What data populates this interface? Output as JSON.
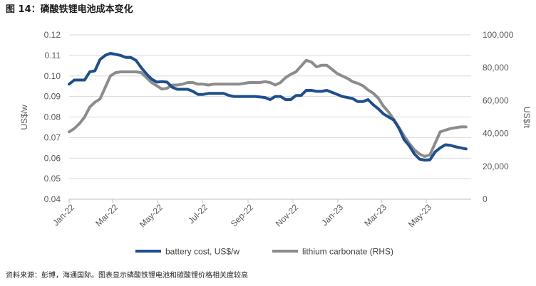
{
  "figure": {
    "title": "图 14：磷酸铁锂电池成本变化",
    "source": "资料来源：彭博，海通国际。图表显示磷酸铁锂电池和碳酸锂价格相关度较高"
  },
  "chart_data": {
    "type": "line",
    "title": "",
    "xlabel": "",
    "ylabel": "US$/w",
    "y2label": "US$/t",
    "x_tick_labels": [
      "Jan-22",
      "Mar-22",
      "May-22",
      "Jul-22",
      "Sep-22",
      "Nov-22",
      "Jan-23",
      "Mar-23",
      "May-23"
    ],
    "x_range_months": [
      "2022-01",
      "2023-06"
    ],
    "ylim": [
      0.04,
      0.12
    ],
    "y_ticks": [
      "0.04",
      "0.05",
      "0.06",
      "0.07",
      "0.08",
      "0.09",
      "0.10",
      "0.11",
      "0.12"
    ],
    "y2lim": [
      0,
      100000
    ],
    "y2_ticks": [
      "0",
      "20,000",
      "40,000",
      "60,000",
      "80,000",
      "100,000"
    ],
    "grid": true,
    "legend_position": "bottom",
    "series": [
      {
        "name": "battery cost, US$/w",
        "axis": "left",
        "color": "#1f4e8c",
        "points": [
          [
            "2022-01-01",
            0.096
          ],
          [
            "2022-01-08",
            0.098
          ],
          [
            "2022-01-15",
            0.098
          ],
          [
            "2022-01-22",
            0.098
          ],
          [
            "2022-01-29",
            0.102
          ],
          [
            "2022-02-05",
            0.1025
          ],
          [
            "2022-02-12",
            0.108
          ],
          [
            "2022-02-19",
            0.11
          ],
          [
            "2022-02-26",
            0.111
          ],
          [
            "2022-03-05",
            0.1105
          ],
          [
            "2022-03-12",
            0.11
          ],
          [
            "2022-03-19",
            0.109
          ],
          [
            "2022-03-26",
            0.109
          ],
          [
            "2022-04-02",
            0.1075
          ],
          [
            "2022-04-09",
            0.104
          ],
          [
            "2022-04-16",
            0.101
          ],
          [
            "2022-04-23",
            0.0985
          ],
          [
            "2022-04-30",
            0.097
          ],
          [
            "2022-05-07",
            0.0972
          ],
          [
            "2022-05-14",
            0.097
          ],
          [
            "2022-05-21",
            0.0945
          ],
          [
            "2022-05-28",
            0.0935
          ],
          [
            "2022-06-04",
            0.0935
          ],
          [
            "2022-06-11",
            0.0935
          ],
          [
            "2022-06-18",
            0.0925
          ],
          [
            "2022-06-25",
            0.091
          ],
          [
            "2022-07-02",
            0.091
          ],
          [
            "2022-07-09",
            0.0915
          ],
          [
            "2022-07-16",
            0.0915
          ],
          [
            "2022-07-23",
            0.0915
          ],
          [
            "2022-07-30",
            0.0915
          ],
          [
            "2022-08-06",
            0.0905
          ],
          [
            "2022-08-13",
            0.09
          ],
          [
            "2022-08-20",
            0.09
          ],
          [
            "2022-08-27",
            0.09
          ],
          [
            "2022-09-03",
            0.09
          ],
          [
            "2022-09-10",
            0.09
          ],
          [
            "2022-09-17",
            0.0898
          ],
          [
            "2022-09-24",
            0.0895
          ],
          [
            "2022-10-01",
            0.0885
          ],
          [
            "2022-10-08",
            0.09
          ],
          [
            "2022-10-15",
            0.09
          ],
          [
            "2022-10-22",
            0.0885
          ],
          [
            "2022-10-29",
            0.0885
          ],
          [
            "2022-11-05",
            0.0905
          ],
          [
            "2022-11-12",
            0.0905
          ],
          [
            "2022-11-19",
            0.093
          ],
          [
            "2022-11-26",
            0.093
          ],
          [
            "2022-12-03",
            0.0925
          ],
          [
            "2022-12-10",
            0.0925
          ],
          [
            "2022-12-17",
            0.093
          ],
          [
            "2022-12-24",
            0.092
          ],
          [
            "2022-12-31",
            0.091
          ],
          [
            "2023-01-07",
            0.09
          ],
          [
            "2023-01-14",
            0.0895
          ],
          [
            "2023-01-21",
            0.089
          ],
          [
            "2023-01-28",
            0.0875
          ],
          [
            "2023-02-04",
            0.0875
          ],
          [
            "2023-02-11",
            0.0885
          ],
          [
            "2023-02-18",
            0.086
          ],
          [
            "2023-02-25",
            0.084
          ],
          [
            "2023-03-04",
            0.0815
          ],
          [
            "2023-03-11",
            0.08
          ],
          [
            "2023-03-18",
            0.0785
          ],
          [
            "2023-03-25",
            0.0745
          ],
          [
            "2023-04-01",
            0.069
          ],
          [
            "2023-04-08",
            0.066
          ],
          [
            "2023-04-15",
            0.062
          ],
          [
            "2023-04-22",
            0.0595
          ],
          [
            "2023-04-29",
            0.059
          ],
          [
            "2023-05-06",
            0.0592
          ],
          [
            "2023-05-13",
            0.063
          ],
          [
            "2023-05-20",
            0.065
          ],
          [
            "2023-05-27",
            0.0665
          ],
          [
            "2023-06-03",
            0.0662
          ],
          [
            "2023-06-10",
            0.0655
          ],
          [
            "2023-06-17",
            0.065
          ],
          [
            "2023-06-24",
            0.0645
          ]
        ]
      },
      {
        "name": "lithium carbonate (RHS)",
        "axis": "right",
        "color": "#8c8c8c",
        "points": [
          [
            "2022-01-01",
            41000
          ],
          [
            "2022-01-08",
            43000
          ],
          [
            "2022-01-15",
            46000
          ],
          [
            "2022-01-22",
            50000
          ],
          [
            "2022-01-29",
            56000
          ],
          [
            "2022-02-05",
            59000
          ],
          [
            "2022-02-12",
            61000
          ],
          [
            "2022-02-19",
            68000
          ],
          [
            "2022-02-26",
            75000
          ],
          [
            "2022-03-05",
            77000
          ],
          [
            "2022-03-12",
            77500
          ],
          [
            "2022-03-19",
            77500
          ],
          [
            "2022-03-26",
            77500
          ],
          [
            "2022-04-02",
            77500
          ],
          [
            "2022-04-09",
            77000
          ],
          [
            "2022-04-16",
            74000
          ],
          [
            "2022-04-23",
            71000
          ],
          [
            "2022-04-30",
            69000
          ],
          [
            "2022-05-07",
            67000
          ],
          [
            "2022-05-14",
            67500
          ],
          [
            "2022-05-21",
            69500
          ],
          [
            "2022-05-28",
            69500
          ],
          [
            "2022-06-04",
            70000
          ],
          [
            "2022-06-11",
            71000
          ],
          [
            "2022-06-18",
            71000
          ],
          [
            "2022-06-25",
            70000
          ],
          [
            "2022-07-02",
            70000
          ],
          [
            "2022-07-09",
            69500
          ],
          [
            "2022-07-16",
            70000
          ],
          [
            "2022-07-23",
            70000
          ],
          [
            "2022-07-30",
            70000
          ],
          [
            "2022-08-06",
            70000
          ],
          [
            "2022-08-13",
            70000
          ],
          [
            "2022-08-20",
            70000
          ],
          [
            "2022-08-27",
            70500
          ],
          [
            "2022-09-03",
            71000
          ],
          [
            "2022-09-10",
            71000
          ],
          [
            "2022-09-17",
            71000
          ],
          [
            "2022-09-24",
            71500
          ],
          [
            "2022-10-01",
            71000
          ],
          [
            "2022-10-08",
            69500
          ],
          [
            "2022-10-15",
            71000
          ],
          [
            "2022-10-22",
            74000
          ],
          [
            "2022-10-29",
            76000
          ],
          [
            "2022-11-05",
            77500
          ],
          [
            "2022-11-12",
            81000
          ],
          [
            "2022-11-19",
            84500
          ],
          [
            "2022-11-26",
            83500
          ],
          [
            "2022-12-03",
            80500
          ],
          [
            "2022-12-10",
            81500
          ],
          [
            "2022-12-17",
            81500
          ],
          [
            "2022-12-24",
            79000
          ],
          [
            "2022-12-31",
            76500
          ],
          [
            "2023-01-07",
            75000
          ],
          [
            "2023-01-14",
            73500
          ],
          [
            "2023-01-21",
            71500
          ],
          [
            "2023-01-28",
            70500
          ],
          [
            "2023-02-04",
            69000
          ],
          [
            "2023-02-11",
            66500
          ],
          [
            "2023-02-18",
            64500
          ],
          [
            "2023-02-25",
            61500
          ],
          [
            "2023-03-04",
            56500
          ],
          [
            "2023-03-11",
            53000
          ],
          [
            "2023-03-18",
            48500
          ],
          [
            "2023-03-25",
            43500
          ],
          [
            "2023-04-01",
            38500
          ],
          [
            "2023-04-08",
            34000
          ],
          [
            "2023-04-15",
            30000
          ],
          [
            "2023-04-22",
            27500
          ],
          [
            "2023-04-29",
            26000
          ],
          [
            "2023-05-06",
            27000
          ],
          [
            "2023-05-13",
            34000
          ],
          [
            "2023-05-20",
            41000
          ],
          [
            "2023-05-27",
            42000
          ],
          [
            "2023-06-03",
            43000
          ],
          [
            "2023-06-10",
            43500
          ],
          [
            "2023-06-17",
            44000
          ],
          [
            "2023-06-24",
            44000
          ]
        ]
      }
    ]
  }
}
